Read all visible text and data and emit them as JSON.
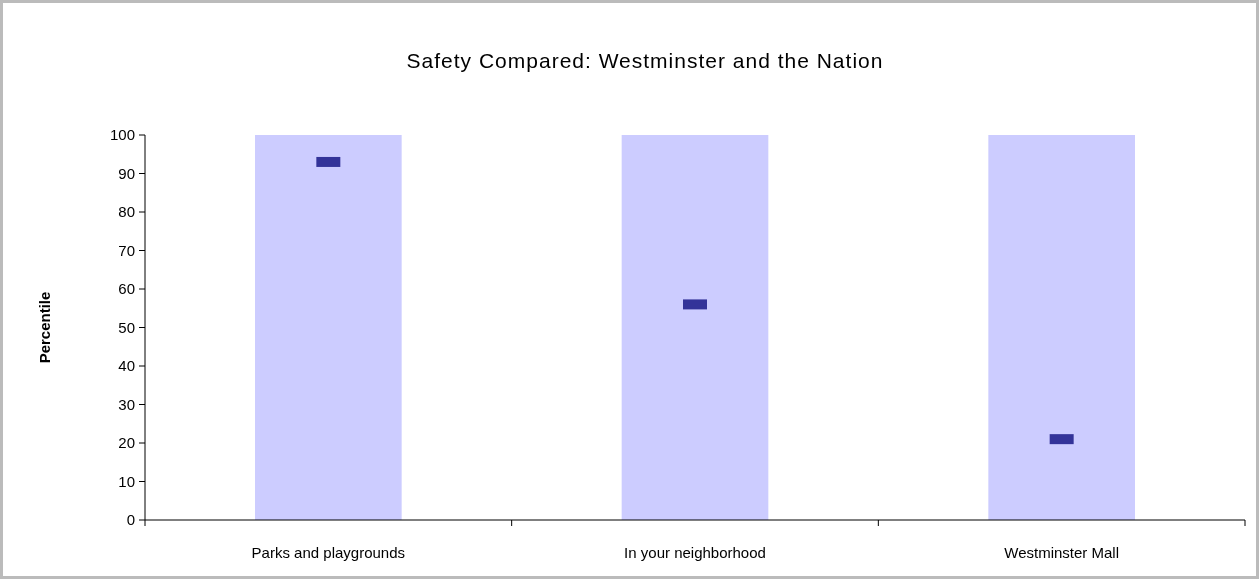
{
  "chart_data": {
    "type": "bar",
    "title": "Safety Compared: Westminster and the Nation",
    "ylabel": "Percentile",
    "categories": [
      "Parks and playgrounds",
      "In your neighborhood",
      "Westminster Mall"
    ],
    "series": [
      {
        "color": "#ccccff",
        "values": [
          100,
          100,
          100
        ]
      },
      {
        "type": "scatter",
        "color": "#333399",
        "marker": "square",
        "x": [
          "Parks and playgrounds",
          "In your neighborhood",
          "Westminster Mall"
        ],
        "values": [
          93,
          56,
          21
        ]
      }
    ],
    "ylim": [
      0,
      100
    ],
    "yticks": [
      0,
      10,
      20,
      30,
      40,
      50,
      60,
      70,
      80,
      90,
      100
    ],
    "grid": false
  }
}
